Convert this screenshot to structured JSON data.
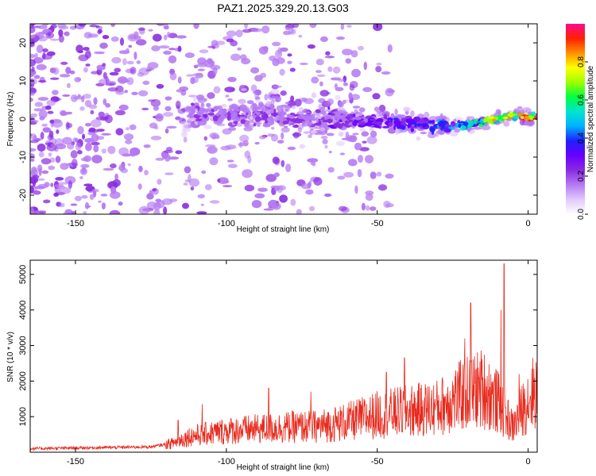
{
  "title": "PAZ1.2025.329.20.13.G03",
  "colors": {
    "snr_line": "#e8291c",
    "background": "#ffffff",
    "axes": "#000000",
    "colormap": [
      "#ffffff",
      "#e2c8fb",
      "#b57af3",
      "#8a2be2",
      "#6a00ff",
      "#1f1fff",
      "#00b0ff",
      "#00e5d0",
      "#00ff40",
      "#9dff00",
      "#ffff00",
      "#ff9000",
      "#ff2000",
      "#ff0a8c"
    ]
  },
  "chart_data": [
    {
      "type": "heatmap",
      "name": "spectrogram",
      "xlabel": "Height of straight line (km)",
      "ylabel": "Frequency (Hz)",
      "xlim": [
        -165,
        3
      ],
      "ylim": [
        -25,
        25
      ],
      "xticks": [
        -150,
        -100,
        -50,
        0
      ],
      "xtick_labels": [
        "-150",
        "-100",
        "-50",
        "0"
      ],
      "yticks": [
        -20,
        -10,
        0,
        10,
        20
      ],
      "ytick_labels": [
        "-20",
        "-10",
        "0",
        "10",
        "20"
      ],
      "colorbar": {
        "label": "Normalized spectral amplitude",
        "range": [
          0,
          1
        ],
        "ticks": [
          0.0,
          0.2,
          0.4,
          0.6,
          0.8
        ],
        "tick_labels": [
          "0.0",
          "0.2",
          "0.4",
          "0.6",
          "0.8"
        ]
      },
      "ridge": [
        {
          "x": -112,
          "freq": 1.5,
          "amp": 0.18
        },
        {
          "x": -100,
          "freq": 1.5,
          "amp": 0.2
        },
        {
          "x": -90,
          "freq": 1.0,
          "amp": 0.2
        },
        {
          "x": -80,
          "freq": 0.5,
          "amp": 0.22
        },
        {
          "x": -70,
          "freq": 0.0,
          "amp": 0.25
        },
        {
          "x": -60,
          "freq": -0.5,
          "amp": 0.28
        },
        {
          "x": -50,
          "freq": -1.0,
          "amp": 0.32
        },
        {
          "x": -40,
          "freq": -1.0,
          "amp": 0.35
        },
        {
          "x": -30,
          "freq": -1.5,
          "amp": 0.38
        },
        {
          "x": -20,
          "freq": -1.5,
          "amp": 0.55
        },
        {
          "x": -10,
          "freq": 0.0,
          "amp": 0.75
        },
        {
          "x": -5,
          "freq": 1.0,
          "amp": 0.8
        },
        {
          "x": 0,
          "freq": 0.5,
          "amp": 0.95
        }
      ]
    },
    {
      "type": "line",
      "name": "snr",
      "xlabel": "Height of straight line (km)",
      "ylabel": "SNR (10 * v/v)",
      "xlim": [
        -165,
        3
      ],
      "ylim": [
        0,
        5400
      ],
      "xticks": [
        -150,
        -100,
        -50,
        0
      ],
      "xtick_labels": [
        "-150",
        "-100",
        "-50",
        "0"
      ],
      "yticks": [
        1000,
        2000,
        3000,
        4000,
        5000
      ],
      "ytick_labels": [
        "1000",
        "2000",
        "3000",
        "4000",
        "5000"
      ],
      "envelope": [
        {
          "x": -165,
          "y": 100
        },
        {
          "x": -125,
          "y": 150
        },
        {
          "x": -118,
          "y": 250
        },
        {
          "x": -112,
          "y": 450
        },
        {
          "x": -100,
          "y": 600
        },
        {
          "x": -90,
          "y": 650
        },
        {
          "x": -80,
          "y": 700
        },
        {
          "x": -70,
          "y": 720
        },
        {
          "x": -60,
          "y": 850
        },
        {
          "x": -50,
          "y": 1050
        },
        {
          "x": -40,
          "y": 1150
        },
        {
          "x": -30,
          "y": 1250
        },
        {
          "x": -22,
          "y": 1600
        },
        {
          "x": -15,
          "y": 1800
        },
        {
          "x": -10,
          "y": 1400
        },
        {
          "x": -5,
          "y": 700
        },
        {
          "x": 0,
          "y": 1500
        },
        {
          "x": 3,
          "y": 1800
        }
      ],
      "peaks": [
        {
          "x": -116,
          "y": 900
        },
        {
          "x": -108,
          "y": 1350
        },
        {
          "x": -86,
          "y": 1800
        },
        {
          "x": -72,
          "y": 1700
        },
        {
          "x": -47,
          "y": 2250
        },
        {
          "x": -41,
          "y": 2650
        },
        {
          "x": -21,
          "y": 3200
        },
        {
          "x": -19,
          "y": 4200
        },
        {
          "x": -9,
          "y": 4000
        },
        {
          "x": -8,
          "y": 5300
        },
        {
          "x": -3,
          "y": 2200
        }
      ]
    }
  ]
}
